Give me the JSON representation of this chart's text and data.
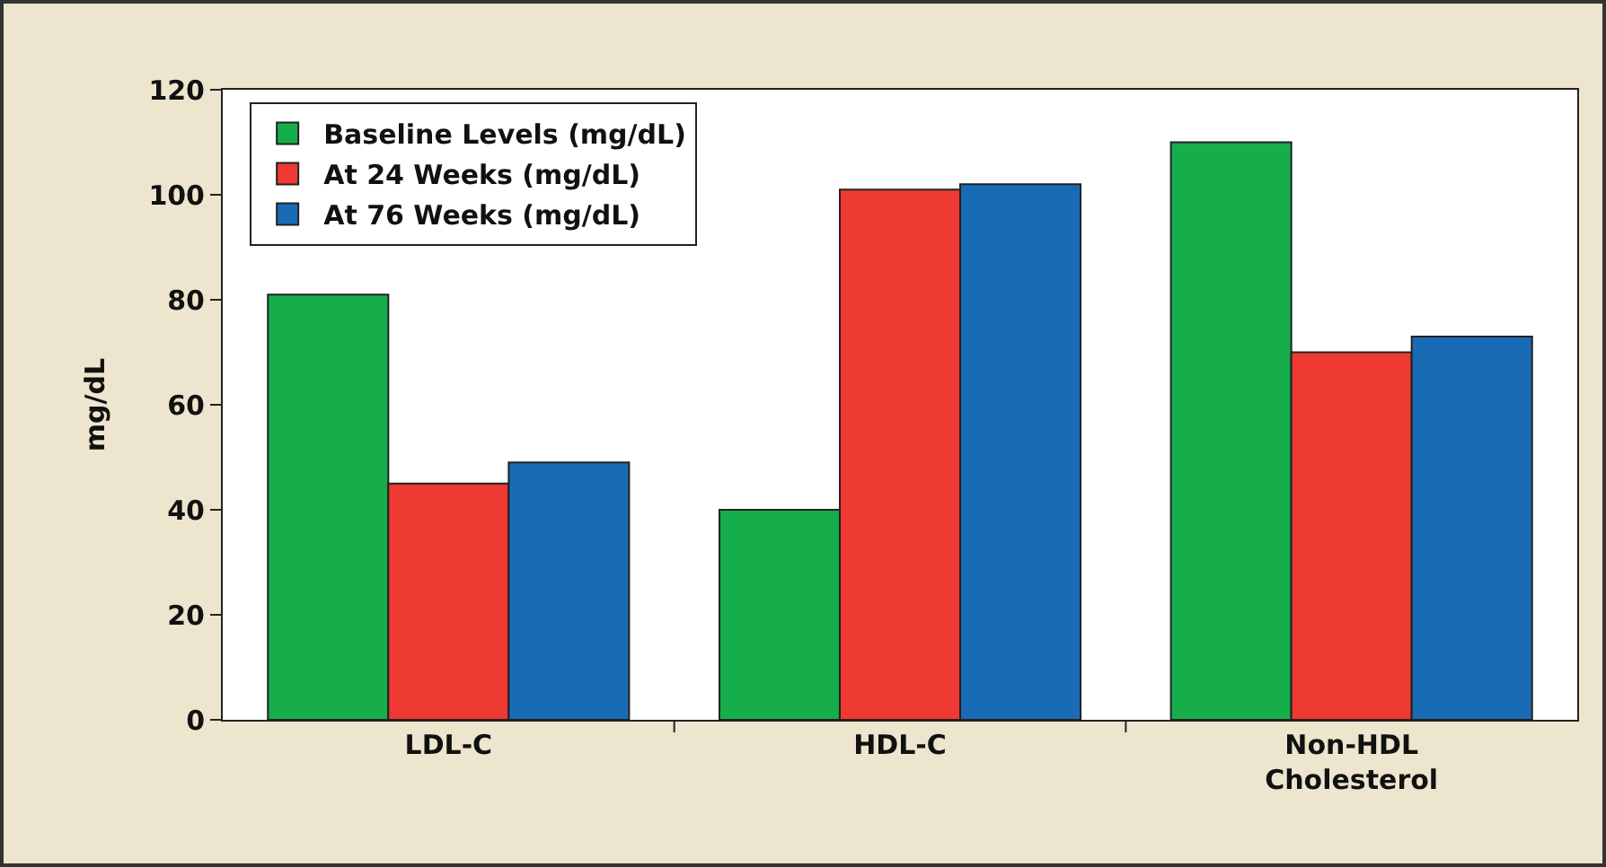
{
  "chart_data": {
    "type": "bar",
    "ylabel": "mg/dL",
    "categories": [
      "LDL-C",
      "HDL-C",
      "Non-HDL\nCholesterol"
    ],
    "series": [
      {
        "name": "Baseline Levels (mg/dL)",
        "color": "#16ad4b",
        "values": [
          81,
          40,
          110
        ]
      },
      {
        "name": "At 24 Weeks (mg/dL)",
        "color": "#ee3a32",
        "values": [
          45,
          101,
          70
        ]
      },
      {
        "name": "At 76 Weeks (mg/dL)",
        "color": "#1a6bb6",
        "values": [
          49,
          102,
          73
        ]
      }
    ],
    "ylim": [
      0,
      120
    ],
    "yticks": [
      0,
      20,
      40,
      60,
      80,
      100,
      120
    ],
    "grid": false,
    "legend": "top left"
  }
}
